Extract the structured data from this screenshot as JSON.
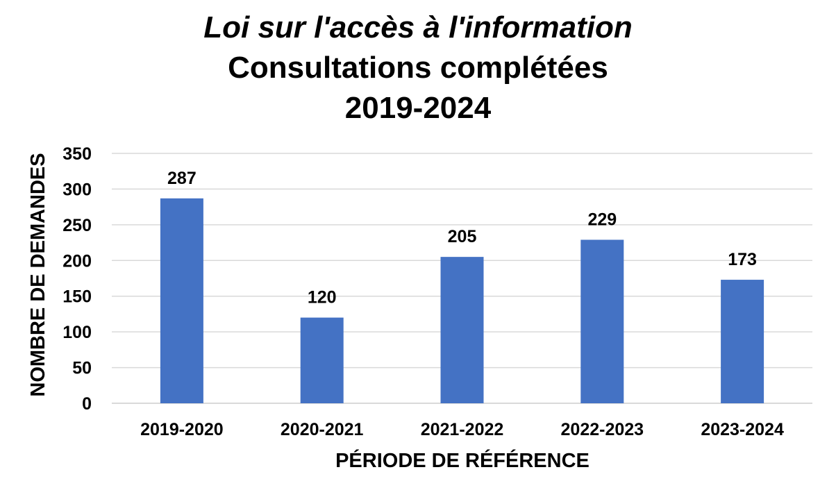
{
  "chart_data": {
    "type": "bar",
    "title": {
      "line1": "Loi sur l'accès à l'information",
      "line2": "Consultations complétées",
      "line3": "2019-2024"
    },
    "xlabel": "PÉRIODE DE RÉFÉRENCE",
    "ylabel": "NOMBRE DE DEMANDES",
    "categories": [
      "2019-2020",
      "2020-2021",
      "2021-2022",
      "2022-2023",
      "2023-2024"
    ],
    "values": [
      287,
      120,
      205,
      229,
      173
    ],
    "data_labels": [
      "287",
      "120",
      "205",
      "229",
      "173"
    ],
    "ylim": [
      0,
      350
    ],
    "yticks": [
      0,
      50,
      100,
      150,
      200,
      250,
      300,
      350
    ],
    "grid": true,
    "legend": "none",
    "colors": {
      "bar": "#4472C4",
      "grid": "#D9D9D9",
      "axis": "#D9D9D9"
    }
  }
}
